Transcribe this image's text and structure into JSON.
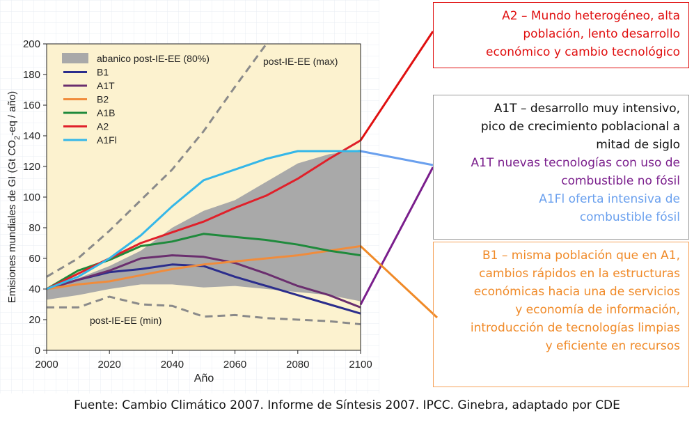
{
  "chart_data": {
    "type": "line",
    "ylabel_main": "Emisiones mundiales de GI (Gt CO",
    "ylabel_sub": "2",
    "ylabel_tail": "-eq / año)",
    "xlabel": "Año",
    "xlim": [
      2000,
      2100
    ],
    "ylim": [
      0,
      200
    ],
    "x_ticks": [
      "2000",
      "2020",
      "2040",
      "2060",
      "2080",
      "2100"
    ],
    "y_ticks": [
      "0",
      "20",
      "40",
      "60",
      "80",
      "100",
      "120",
      "140",
      "160",
      "180",
      "200"
    ],
    "band": {
      "name": "abanico post-IE-EE (80%)",
      "x": [
        2000,
        2010,
        2020,
        2030,
        2040,
        2050,
        2060,
        2070,
        2080,
        2090,
        2100
      ],
      "upper": [
        40,
        47,
        55,
        65,
        80,
        91,
        98,
        110,
        122,
        128,
        131
      ],
      "lower": [
        33,
        36,
        40,
        43,
        43,
        41,
        42,
        40,
        38,
        36,
        32
      ]
    },
    "dashed_max": {
      "label": "post-IE-EE (max)",
      "x": [
        2000,
        2010,
        2020,
        2030,
        2040,
        2050,
        2060,
        2070
      ],
      "y": [
        48,
        60,
        78,
        98,
        118,
        143,
        172,
        200
      ]
    },
    "dashed_min": {
      "label": "post-IE-EE (min)",
      "x": [
        2000,
        2010,
        2020,
        2030,
        2040,
        2050,
        2060,
        2070,
        2080,
        2090,
        2100
      ],
      "y": [
        28,
        28,
        35,
        30,
        29,
        22,
        23,
        21,
        20,
        19,
        17
      ]
    },
    "series": [
      {
        "name": "B1",
        "color": "#2b2d8c",
        "x": [
          2000,
          2010,
          2020,
          2030,
          2040,
          2050,
          2060,
          2070,
          2080,
          2090,
          2100
        ],
        "y": [
          40,
          46,
          51,
          53,
          56,
          55,
          48,
          42,
          36,
          30,
          24
        ]
      },
      {
        "name": "A1T",
        "color": "#6a2e6e",
        "x": [
          2000,
          2010,
          2020,
          2030,
          2040,
          2050,
          2060,
          2070,
          2080,
          2090,
          2100
        ],
        "y": [
          40,
          46,
          52,
          60,
          62,
          61,
          57,
          50,
          42,
          36,
          28
        ]
      },
      {
        "name": "B2",
        "color": "#f08c3c",
        "x": [
          2000,
          2010,
          2020,
          2030,
          2040,
          2050,
          2060,
          2070,
          2080,
          2090,
          2100
        ],
        "y": [
          40,
          43,
          45,
          49,
          53,
          56,
          58,
          60,
          62,
          65,
          68
        ]
      },
      {
        "name": "A1B",
        "color": "#1f8a3c",
        "x": [
          2000,
          2010,
          2020,
          2030,
          2040,
          2050,
          2060,
          2070,
          2080,
          2090,
          2100
        ],
        "y": [
          40,
          52,
          59,
          68,
          71,
          76,
          74,
          72,
          69,
          65,
          62
        ]
      },
      {
        "name": "A2",
        "color": "#e0202a",
        "x": [
          2000,
          2010,
          2020,
          2030,
          2040,
          2050,
          2060,
          2070,
          2080,
          2090,
          2100
        ],
        "y": [
          40,
          50,
          60,
          70,
          77,
          84,
          93,
          101,
          112,
          125,
          137
        ]
      },
      {
        "name": "A1FI",
        "color": "#35b7e8",
        "x": [
          2000,
          2010,
          2020,
          2030,
          2040,
          2050,
          2060,
          2070,
          2080,
          2090,
          2100
        ],
        "y": [
          40,
          48,
          60,
          75,
          94,
          111,
          118,
          125,
          130,
          130,
          130
        ]
      }
    ],
    "legend_display": [
      "abanico post-IE-EE (80%)",
      "B1",
      "A1T",
      "B2",
      "A1B",
      "A2",
      "A1Fl"
    ],
    "legend_position": "top-left"
  },
  "annotations": {
    "a2_lines": [
      "A2 – Mundo heterogéneo, alta",
      "población, lento desarrollo",
      "económico y cambio tecnológico"
    ],
    "a1t_lines": [
      "A1T – desarrollo muy intensivo,",
      "pico de crecimiento poblacional a",
      "mitad de siglo"
    ],
    "a1t_purple_lines": [
      "A1T nuevas tecnologías con uso de",
      "combustible no fósil"
    ],
    "a1fi_lines": [
      "A1Fl oferta intensiva de",
      "combustible fósil"
    ],
    "b1_lines": [
      "B1 – misma población que en A1,",
      "cambios rápidos en la estructuras",
      "económicas hacia una de servicios",
      "y economía de información,",
      "introducción de tecnologías limpias",
      "y eficiente en recursos"
    ],
    "colors": {
      "a2": "#e01010",
      "a1t_purple": "#7a1e8c",
      "a1fi_blue": "#6aa0ee",
      "b1_orange": "#f08a28",
      "neutral": "#9a9a9a"
    }
  },
  "footer": "Fuente: Cambio Climático 2007. Informe de Síntesis 2007.  IPCC. Ginebra, adaptado por CDE"
}
